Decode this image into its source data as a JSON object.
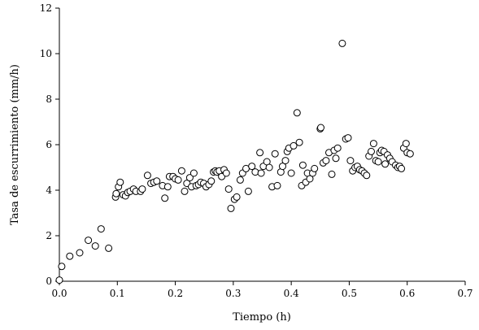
{
  "chart_data": {
    "type": "scatter",
    "xlabel": "Tiempo (h)",
    "ylabel": "Tasa de escurrimiento (mm/h)",
    "xlim": [
      0.0,
      0.7
    ],
    "ylim": [
      0,
      12
    ],
    "x_ticks": [
      "0.0",
      "0.1",
      "0.2",
      "0.3",
      "0.4",
      "0.5",
      "0.6",
      "0.7"
    ],
    "y_ticks": [
      "0",
      "2",
      "4",
      "6",
      "8",
      "10",
      "12"
    ],
    "grid": false,
    "legend": "none",
    "marker": "hollow-circle",
    "series": [
      {
        "x": [
          0.0,
          0.004,
          0.018,
          0.035,
          0.05,
          0.062,
          0.072,
          0.085,
          0.097,
          0.098,
          0.102,
          0.105,
          0.11,
          0.114,
          0.118,
          0.122,
          0.128,
          0.132,
          0.14,
          0.143,
          0.152,
          0.158,
          0.163,
          0.168,
          0.178,
          0.182,
          0.187,
          0.19,
          0.196,
          0.2,
          0.205,
          0.211,
          0.216,
          0.22,
          0.225,
          0.228,
          0.232,
          0.236,
          0.24,
          0.244,
          0.249,
          0.253,
          0.258,
          0.262,
          0.266,
          0.269,
          0.272,
          0.276,
          0.28,
          0.284,
          0.288,
          0.292,
          0.296,
          0.302,
          0.306,
          0.312,
          0.316,
          0.322,
          0.326,
          0.332,
          0.338,
          0.346,
          0.348,
          0.352,
          0.358,
          0.362,
          0.367,
          0.372,
          0.376,
          0.382,
          0.385,
          0.39,
          0.393,
          0.396,
          0.4,
          0.404,
          0.41,
          0.414,
          0.418,
          0.42,
          0.425,
          0.428,
          0.432,
          0.437,
          0.44,
          0.45,
          0.451,
          0.455,
          0.46,
          0.465,
          0.47,
          0.474,
          0.477,
          0.48,
          0.488,
          0.494,
          0.498,
          0.502,
          0.506,
          0.51,
          0.514,
          0.518,
          0.522,
          0.526,
          0.53,
          0.534,
          0.538,
          0.542,
          0.546,
          0.55,
          0.553,
          0.556,
          0.56,
          0.562,
          0.566,
          0.57,
          0.574,
          0.58,
          0.584,
          0.587,
          0.59,
          0.594,
          0.598,
          0.6,
          0.605
        ],
        "y": [
          0.05,
          0.65,
          1.1,
          1.25,
          1.8,
          1.55,
          2.3,
          1.45,
          3.7,
          3.85,
          4.15,
          4.35,
          3.8,
          3.75,
          3.9,
          3.95,
          4.05,
          3.95,
          3.95,
          4.05,
          4.65,
          4.3,
          4.35,
          4.4,
          4.2,
          3.65,
          4.15,
          4.6,
          4.6,
          4.5,
          4.45,
          4.85,
          3.95,
          4.3,
          4.55,
          4.15,
          4.75,
          4.2,
          4.25,
          4.35,
          4.3,
          4.15,
          4.25,
          4.4,
          4.8,
          4.85,
          4.8,
          4.85,
          4.6,
          4.9,
          4.75,
          4.05,
          3.2,
          3.6,
          3.7,
          4.45,
          4.75,
          4.95,
          3.95,
          5.05,
          4.8,
          5.65,
          4.75,
          5.05,
          5.25,
          5.0,
          4.15,
          5.6,
          4.2,
          4.8,
          5.05,
          5.3,
          5.7,
          5.85,
          4.75,
          5.95,
          7.4,
          6.1,
          4.2,
          5.1,
          4.35,
          4.75,
          4.5,
          4.75,
          4.95,
          6.7,
          6.75,
          5.2,
          5.3,
          5.65,
          4.7,
          5.75,
          5.4,
          5.85,
          10.45,
          6.25,
          6.3,
          5.3,
          4.85,
          5.0,
          5.05,
          4.9,
          4.85,
          4.75,
          4.65,
          5.5,
          5.7,
          6.05,
          5.3,
          5.25,
          5.65,
          5.75,
          5.7,
          5.15,
          5.55,
          5.4,
          5.25,
          5.1,
          5.0,
          5.05,
          4.95,
          5.85,
          6.05,
          5.65,
          5.6
        ]
      }
    ]
  }
}
